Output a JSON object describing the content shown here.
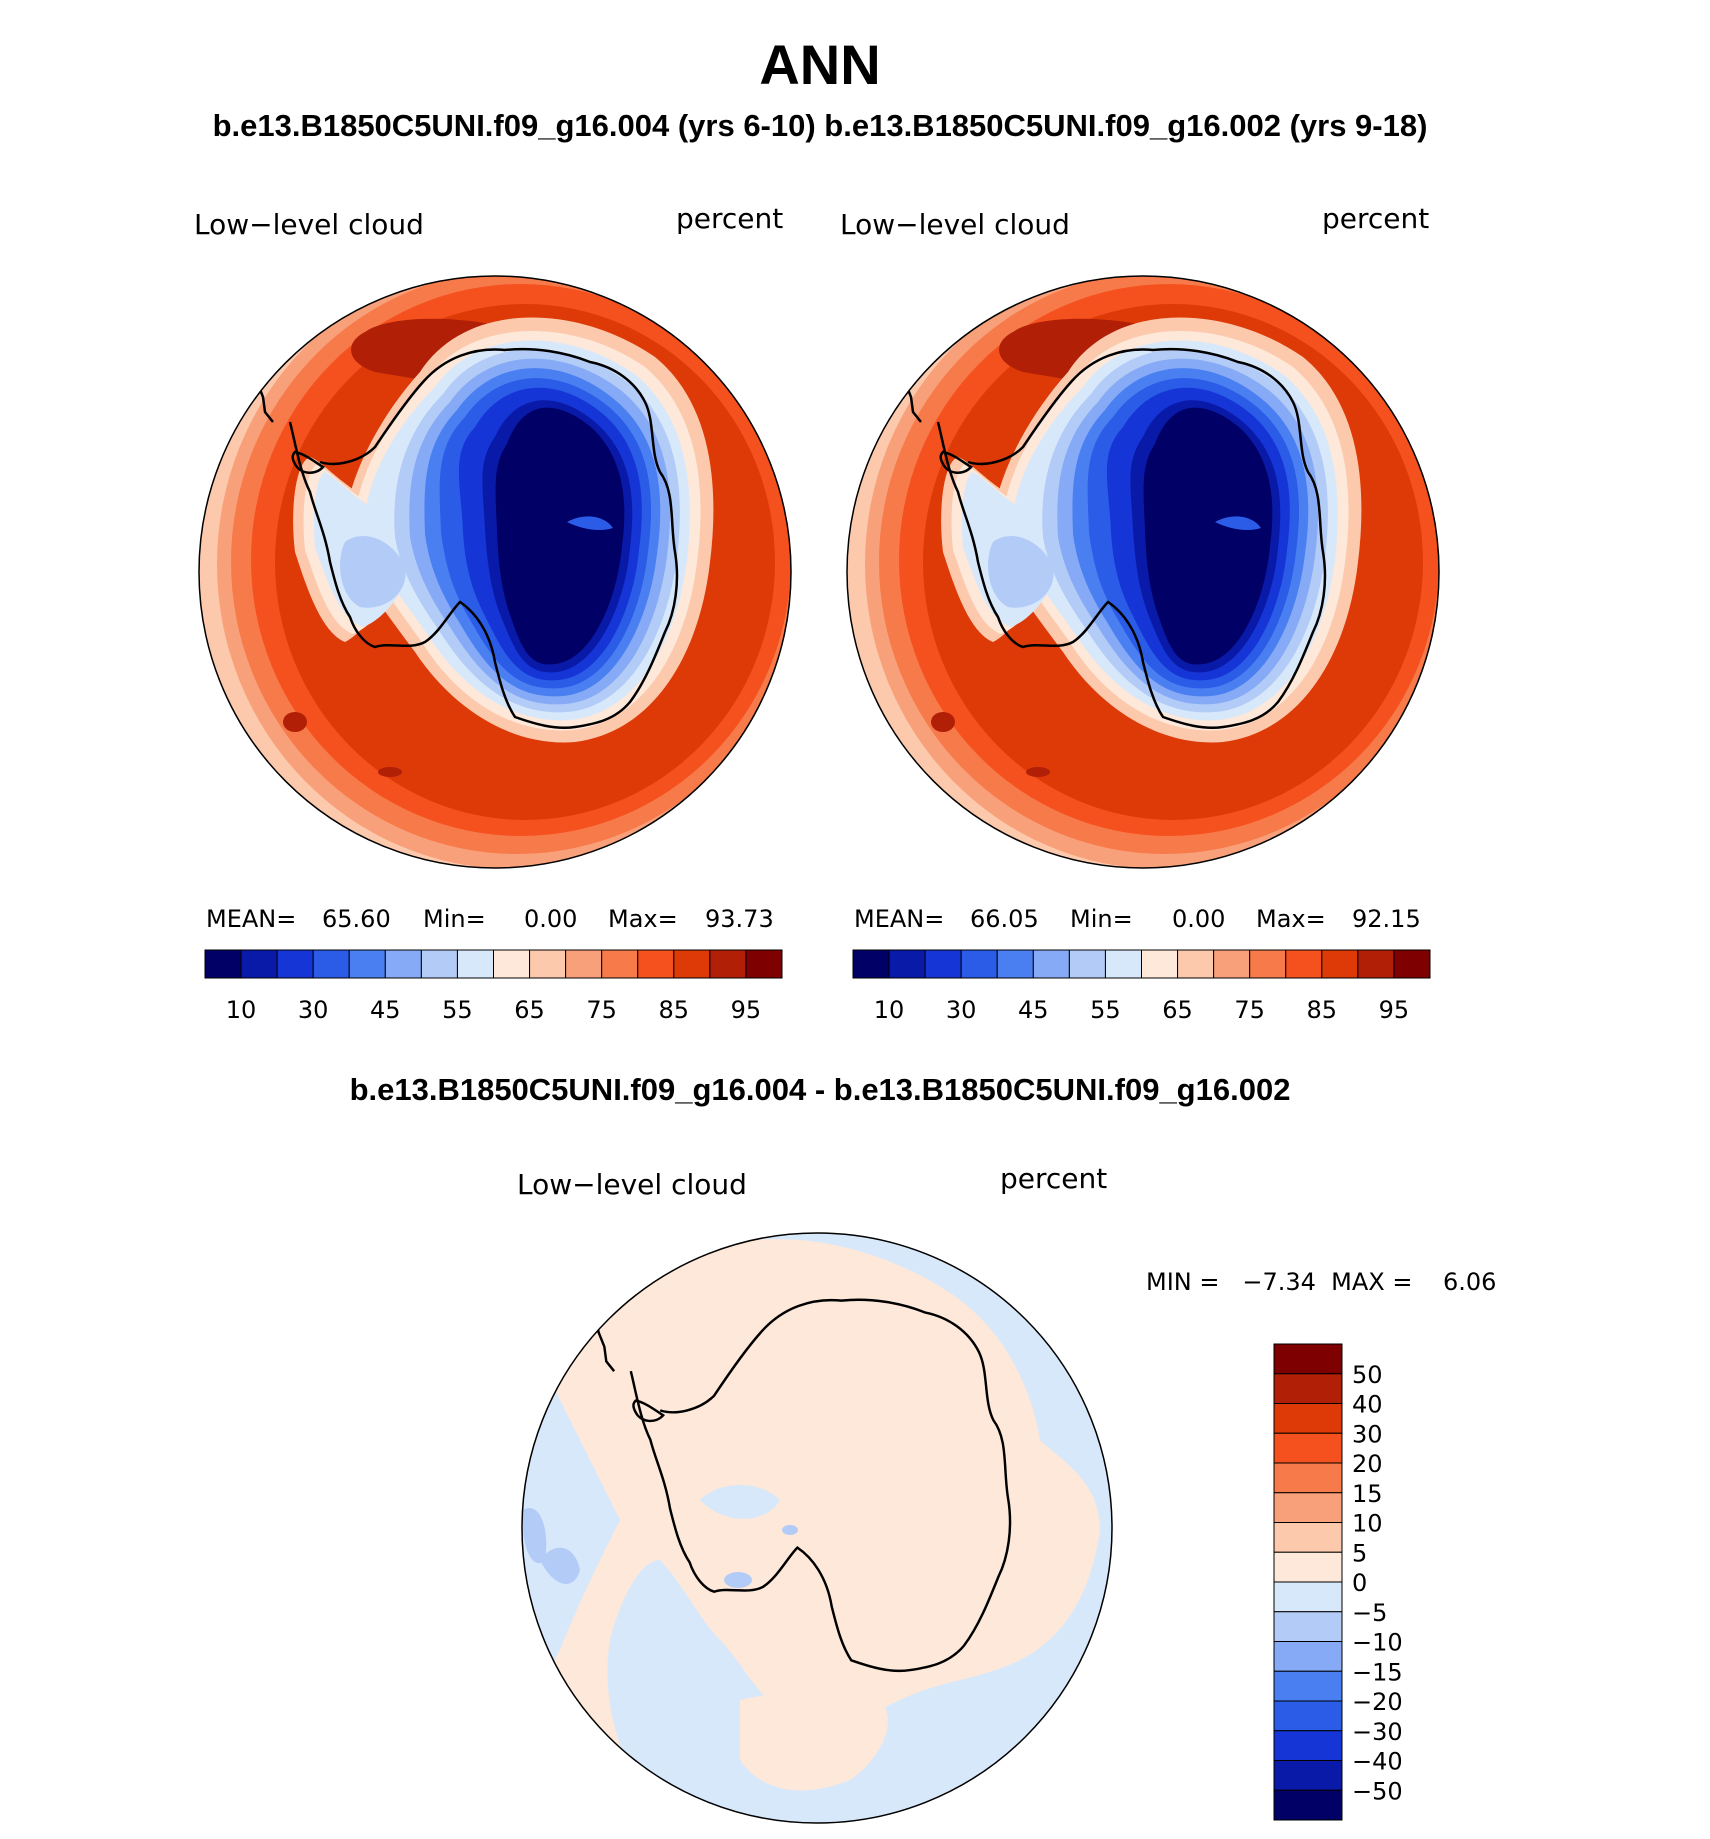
{
  "page": {
    "season": "ANN",
    "case_header": "b.e13.B1850C5UNI.f09_g16.004 (yrs 6-10) b.e13.B1850C5UNI.f09_g16.002 (yrs 9-18)",
    "diff_header": "b.e13.B1850C5UNI.f09_g16.004 - b.e13.B1850C5UNI.f09_g16.002"
  },
  "panels": [
    {
      "variable": "Low−level cloud",
      "units": "percent",
      "mean_label": "MEAN=",
      "mean_value": "65.60",
      "min_label": "Min=",
      "min_value": "0.00",
      "max_label": "Max=",
      "max_value": "93.73"
    },
    {
      "variable": "Low−level cloud",
      "units": "percent",
      "mean_label": "MEAN=",
      "mean_value": "66.05",
      "min_label": "Min=",
      "min_value": "0.00",
      "max_label": "Max=",
      "max_value": "92.15"
    }
  ],
  "diff_panel": {
    "variable": "Low−level cloud",
    "units": "percent",
    "minmax": "MIN =   −7.34  MAX =    6.06"
  },
  "colorbar_main": {
    "colors": [
      "#000066",
      "#0a1aa8",
      "#1535d6",
      "#2a5ce8",
      "#4a7ff2",
      "#86aaf5",
      "#b3ccf7",
      "#d8e8fb",
      "#fde8d9",
      "#fcc9ad",
      "#f8a07a",
      "#f77a4a",
      "#f5511e",
      "#dd3a08",
      "#b01f06",
      "#7f0000"
    ],
    "labels": [
      "10",
      "30",
      "45",
      "55",
      "65",
      "75",
      "85",
      "95"
    ]
  },
  "colorbar_diff": {
    "colors": [
      "#7f0000",
      "#b01f06",
      "#dd3a08",
      "#f5511e",
      "#f77a4a",
      "#f8a07a",
      "#fcc9ad",
      "#fde8d9",
      "#d8e8fb",
      "#b3ccf7",
      "#86aaf5",
      "#4a7ff2",
      "#2a5ce8",
      "#1535d6",
      "#0a1aa8",
      "#000066"
    ],
    "labels": [
      "50",
      "40",
      "30",
      "20",
      "15",
      "10",
      "5",
      "0",
      "−5",
      "−10",
      "−15",
      "−20",
      "−30",
      "−40",
      "−50"
    ]
  }
}
